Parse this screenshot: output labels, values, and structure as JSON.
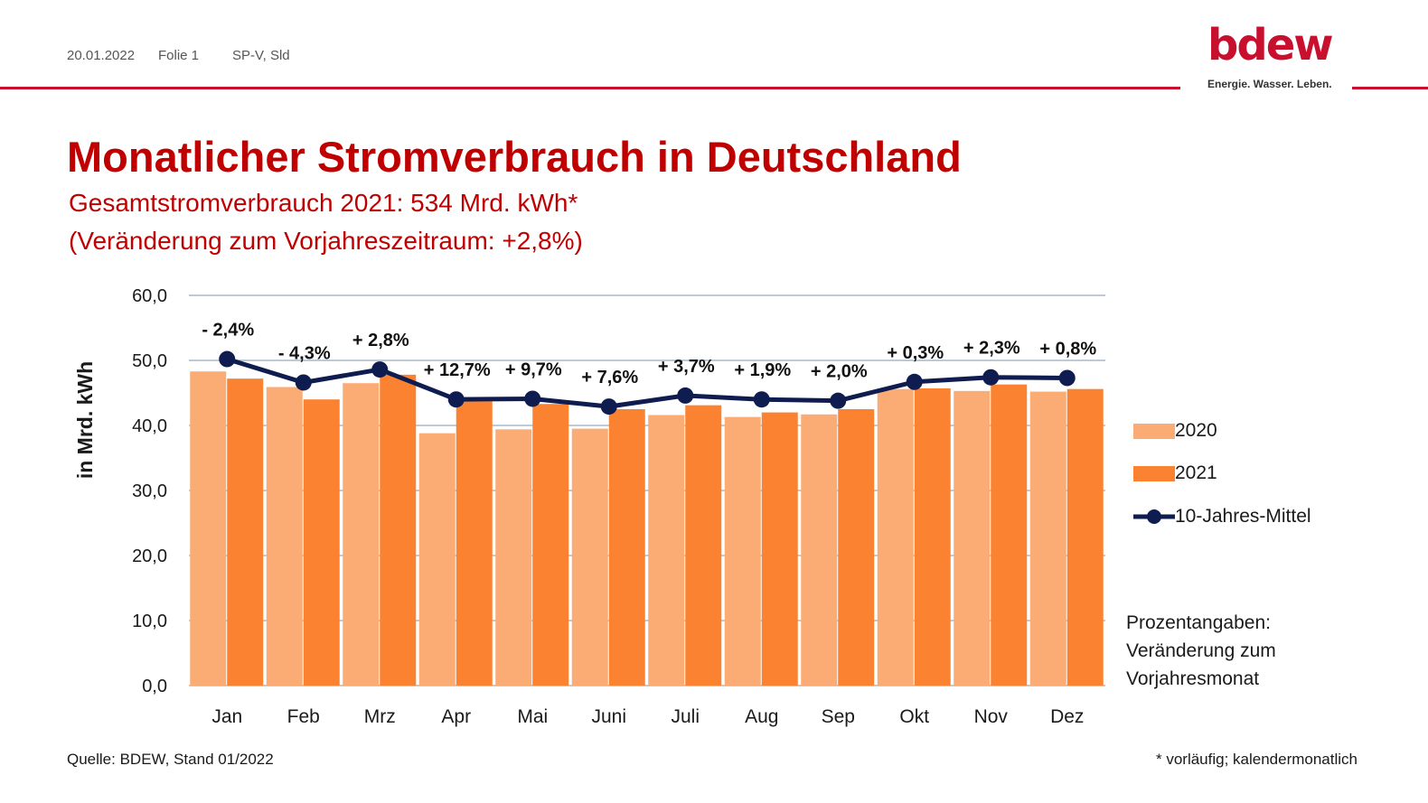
{
  "header": {
    "date": "20.01.2022",
    "slide": "Folie 1",
    "author": "SP-V, Sld",
    "logo_text": "bdew",
    "logo_tagline": "Energie. Wasser. Leben."
  },
  "title": "Monatlicher Stromverbrauch in Deutschland",
  "subtitle_line1": "Gesamtstromverbrauch 2021: 534 Mrd. kWh*",
  "subtitle_line2": "(Veränderung zum Vorjahreszeitraum: +2,8%)",
  "legend": {
    "items": [
      {
        "label": "2020",
        "color": "#fbac74"
      },
      {
        "label": "2021",
        "color": "#fb8230"
      },
      {
        "label": "10-Jahres-Mittel",
        "color": "#0e1c4f"
      }
    ]
  },
  "note": {
    "line1": "Prozentangaben:",
    "line2": "Veränderung zum",
    "line3": "Vorjahresmonat"
  },
  "footer": {
    "source": "Quelle: BDEW, Stand 01/2022",
    "footnote": "* vorläufig; kalendermonatlich"
  },
  "colors": {
    "brand_red": "#c8102e",
    "title_red": "#c00000",
    "bar_2020": "#fbac74",
    "bar_2021": "#fb8230",
    "line_avg": "#0e1c4f",
    "grid": "#a9b9c7"
  },
  "chart_data": {
    "type": "bar",
    "categories": [
      "Jan",
      "Feb",
      "Mrz",
      "Apr",
      "Mai",
      "Juni",
      "Juli",
      "Aug",
      "Sep",
      "Okt",
      "Nov",
      "Dez"
    ],
    "series": [
      {
        "name": "2020",
        "type": "bar",
        "values": [
          48.3,
          45.9,
          46.5,
          38.8,
          39.4,
          39.5,
          41.6,
          41.3,
          41.7,
          45.6,
          45.3,
          45.2
        ]
      },
      {
        "name": "2021",
        "type": "bar",
        "values": [
          47.2,
          44.0,
          47.8,
          43.7,
          43.3,
          42.5,
          43.1,
          42.0,
          42.5,
          45.7,
          46.3,
          45.6
        ]
      },
      {
        "name": "10-Jahres-Mittel",
        "type": "line",
        "values": [
          50.2,
          46.6,
          48.6,
          44.0,
          44.1,
          42.9,
          44.6,
          44.0,
          43.8,
          46.7,
          47.4,
          47.3
        ]
      }
    ],
    "data_labels": [
      "- 2,4%",
      "- 4,3%",
      "+ 2,8%",
      "+ 12,7%",
      "+ 9,7%",
      "+ 7,6%",
      "+ 3,7%",
      "+ 1,9%",
      "+ 2,0%",
      "+ 0,3%",
      "+ 2,3%",
      "+ 0,8%"
    ],
    "ylabel": "in Mrd. kWh",
    "ylim": [
      0,
      60
    ],
    "yticks": [
      "0,0",
      "10,0",
      "20,0",
      "30,0",
      "40,0",
      "50,0",
      "60,0"
    ],
    "grid": true,
    "legend_position": "right"
  }
}
